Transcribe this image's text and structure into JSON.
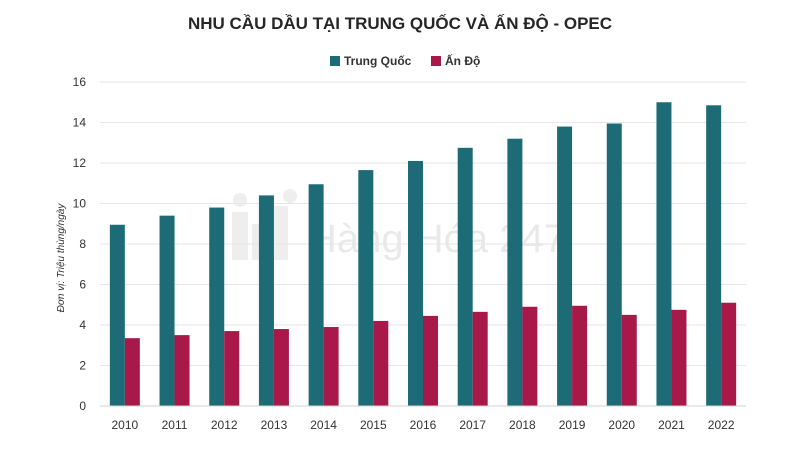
{
  "watermark": "Hàng Hóa 247",
  "chart_data": {
    "type": "bar",
    "title": "NHU CẦU DẦU TẠI TRUNG QUỐC VÀ ẤN ĐỘ - OPEC",
    "ylabel": "Đơn vị: Triệu thùng/ngày",
    "xlabel": "",
    "categories": [
      "2010",
      "2011",
      "2012",
      "2013",
      "2014",
      "2015",
      "2016",
      "2017",
      "2018",
      "2019",
      "2020",
      "2021",
      "2022"
    ],
    "series": [
      {
        "name": "Trung Quốc",
        "color": "#1c6b76",
        "values": [
          8.95,
          9.4,
          9.8,
          10.4,
          10.95,
          11.65,
          12.1,
          12.75,
          13.2,
          13.8,
          13.95,
          15.0,
          14.85
        ]
      },
      {
        "name": "Ấn Độ",
        "color": "#a8194a",
        "values": [
          3.35,
          3.5,
          3.7,
          3.8,
          3.9,
          4.2,
          4.45,
          4.65,
          4.9,
          4.95,
          4.5,
          4.75,
          5.1
        ]
      }
    ],
    "ylim": [
      0,
      16
    ],
    "yticks": [
      0,
      2,
      4,
      6,
      8,
      10,
      12,
      14,
      16
    ],
    "grid": true,
    "legend_position": "top-center"
  }
}
